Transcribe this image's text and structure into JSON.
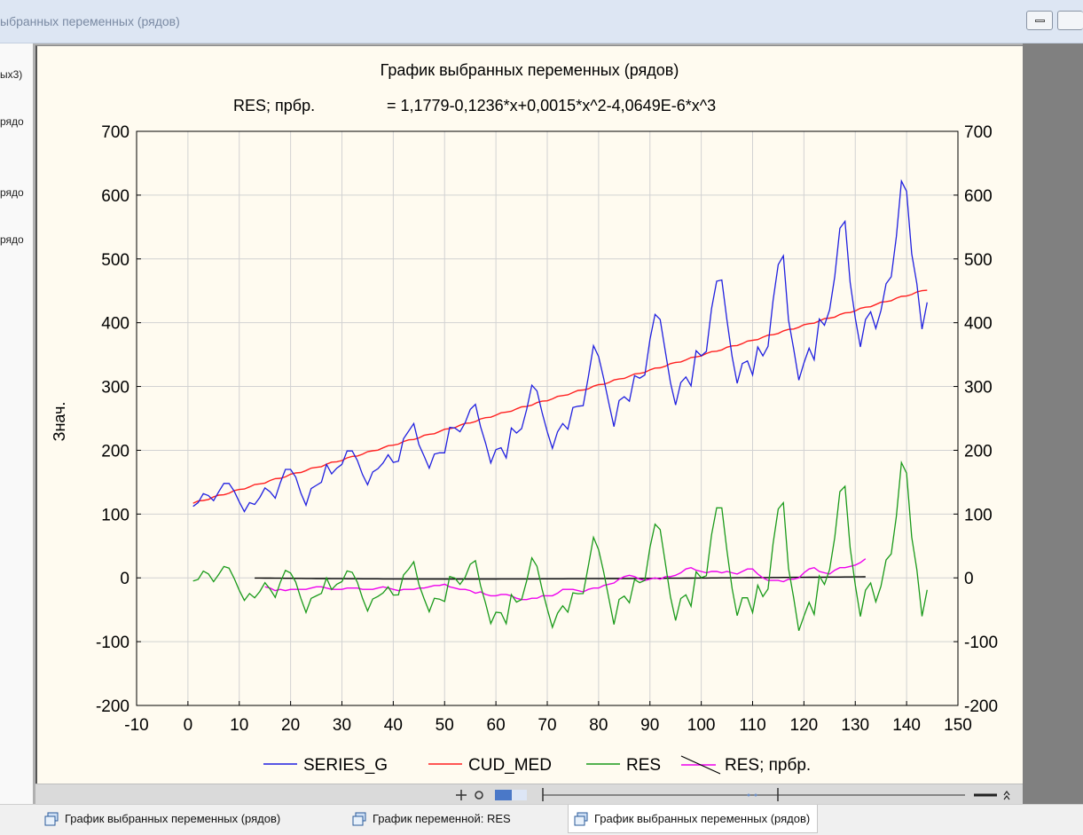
{
  "window": {
    "title": "ыбранных переменных (рядов)"
  },
  "left_panel": {
    "items": [
      "ых3)",
      "рядо",
      "рядо",
      "рядо"
    ]
  },
  "tabs": [
    {
      "label": "График выбранных переменных (рядов)",
      "active": false
    },
    {
      "label": "График переменной: RES",
      "active": false
    },
    {
      "label": "График выбранных переменных (рядов)",
      "active": true
    }
  ],
  "colors": {
    "series_g": "#2020e0",
    "cud_med": "#ff2020",
    "res": "#1a9a1a",
    "res_smooth": "#ee00ee",
    "res_fit": "#000000",
    "plot_bg": "#fffbf0"
  },
  "chart_data": {
    "type": "line",
    "title": "График выбранных переменных (рядов)",
    "subtitle_left": "RES; прбр.",
    "subtitle_right": "= 1,1779-0,1236*x+0,0015*x^2-4,0649E-6*x^3",
    "ylabel": "Знач.",
    "xlim": [
      -10,
      150
    ],
    "ylim": [
      -200,
      700
    ],
    "xticks": [
      -10,
      0,
      10,
      20,
      30,
      40,
      50,
      60,
      70,
      80,
      90,
      100,
      110,
      120,
      130,
      140,
      150
    ],
    "yticks": [
      -200,
      -100,
      0,
      100,
      200,
      300,
      400,
      500,
      600,
      700
    ],
    "grid": true,
    "legend_position": "bottom",
    "legend": [
      "SERIES_G",
      "CUD_MED",
      "RES",
      "RES; прбр."
    ],
    "series_g": [
      112,
      118,
      132,
      129,
      121,
      135,
      148,
      148,
      136,
      119,
      104,
      118,
      115,
      126,
      141,
      135,
      125,
      149,
      170,
      170,
      158,
      133,
      114,
      140,
      145,
      150,
      178,
      163,
      172,
      178,
      199,
      199,
      184,
      162,
      146,
      166,
      171,
      180,
      193,
      181,
      183,
      218,
      230,
      242,
      209,
      191,
      172,
      194,
      196,
      196,
      236,
      235,
      229,
      243,
      264,
      272,
      237,
      211,
      180,
      201,
      204,
      188,
      235,
      227,
      234,
      264,
      302,
      293,
      259,
      229,
      203,
      229,
      242,
      233,
      267,
      269,
      270,
      315,
      364,
      347,
      312,
      274,
      237,
      278,
      284,
      277,
      317,
      313,
      318,
      374,
      413,
      405,
      355,
      306,
      271,
      306,
      315,
      301,
      356,
      348,
      355,
      422,
      465,
      467,
      404,
      347,
      305,
      336,
      340,
      318,
      362,
      348,
      363,
      435,
      491,
      505,
      404,
      359,
      310,
      337,
      360,
      342,
      406,
      396,
      420,
      472,
      548,
      559,
      463,
      407,
      362,
      405,
      417,
      391,
      419,
      461,
      472,
      535,
      622,
      606,
      508,
      461,
      390,
      432
    ],
    "cud_med_start": 117,
    "cud_med_end": 452,
    "res_offsets": [
      6,
      18,
      -14,
      -15,
      3,
      -6,
      -5,
      6,
      8,
      4,
      -8,
      1,
      -8,
      -6,
      12,
      2,
      -10,
      10,
      -7,
      3,
      5,
      -3,
      -9,
      4,
      11,
      -12,
      7,
      -2,
      -4,
      8,
      -6,
      3,
      9,
      -10,
      2,
      -7,
      5,
      1,
      -6,
      8,
      -3,
      -9,
      12,
      -4,
      2,
      -5,
      7,
      -2
    ]
  }
}
